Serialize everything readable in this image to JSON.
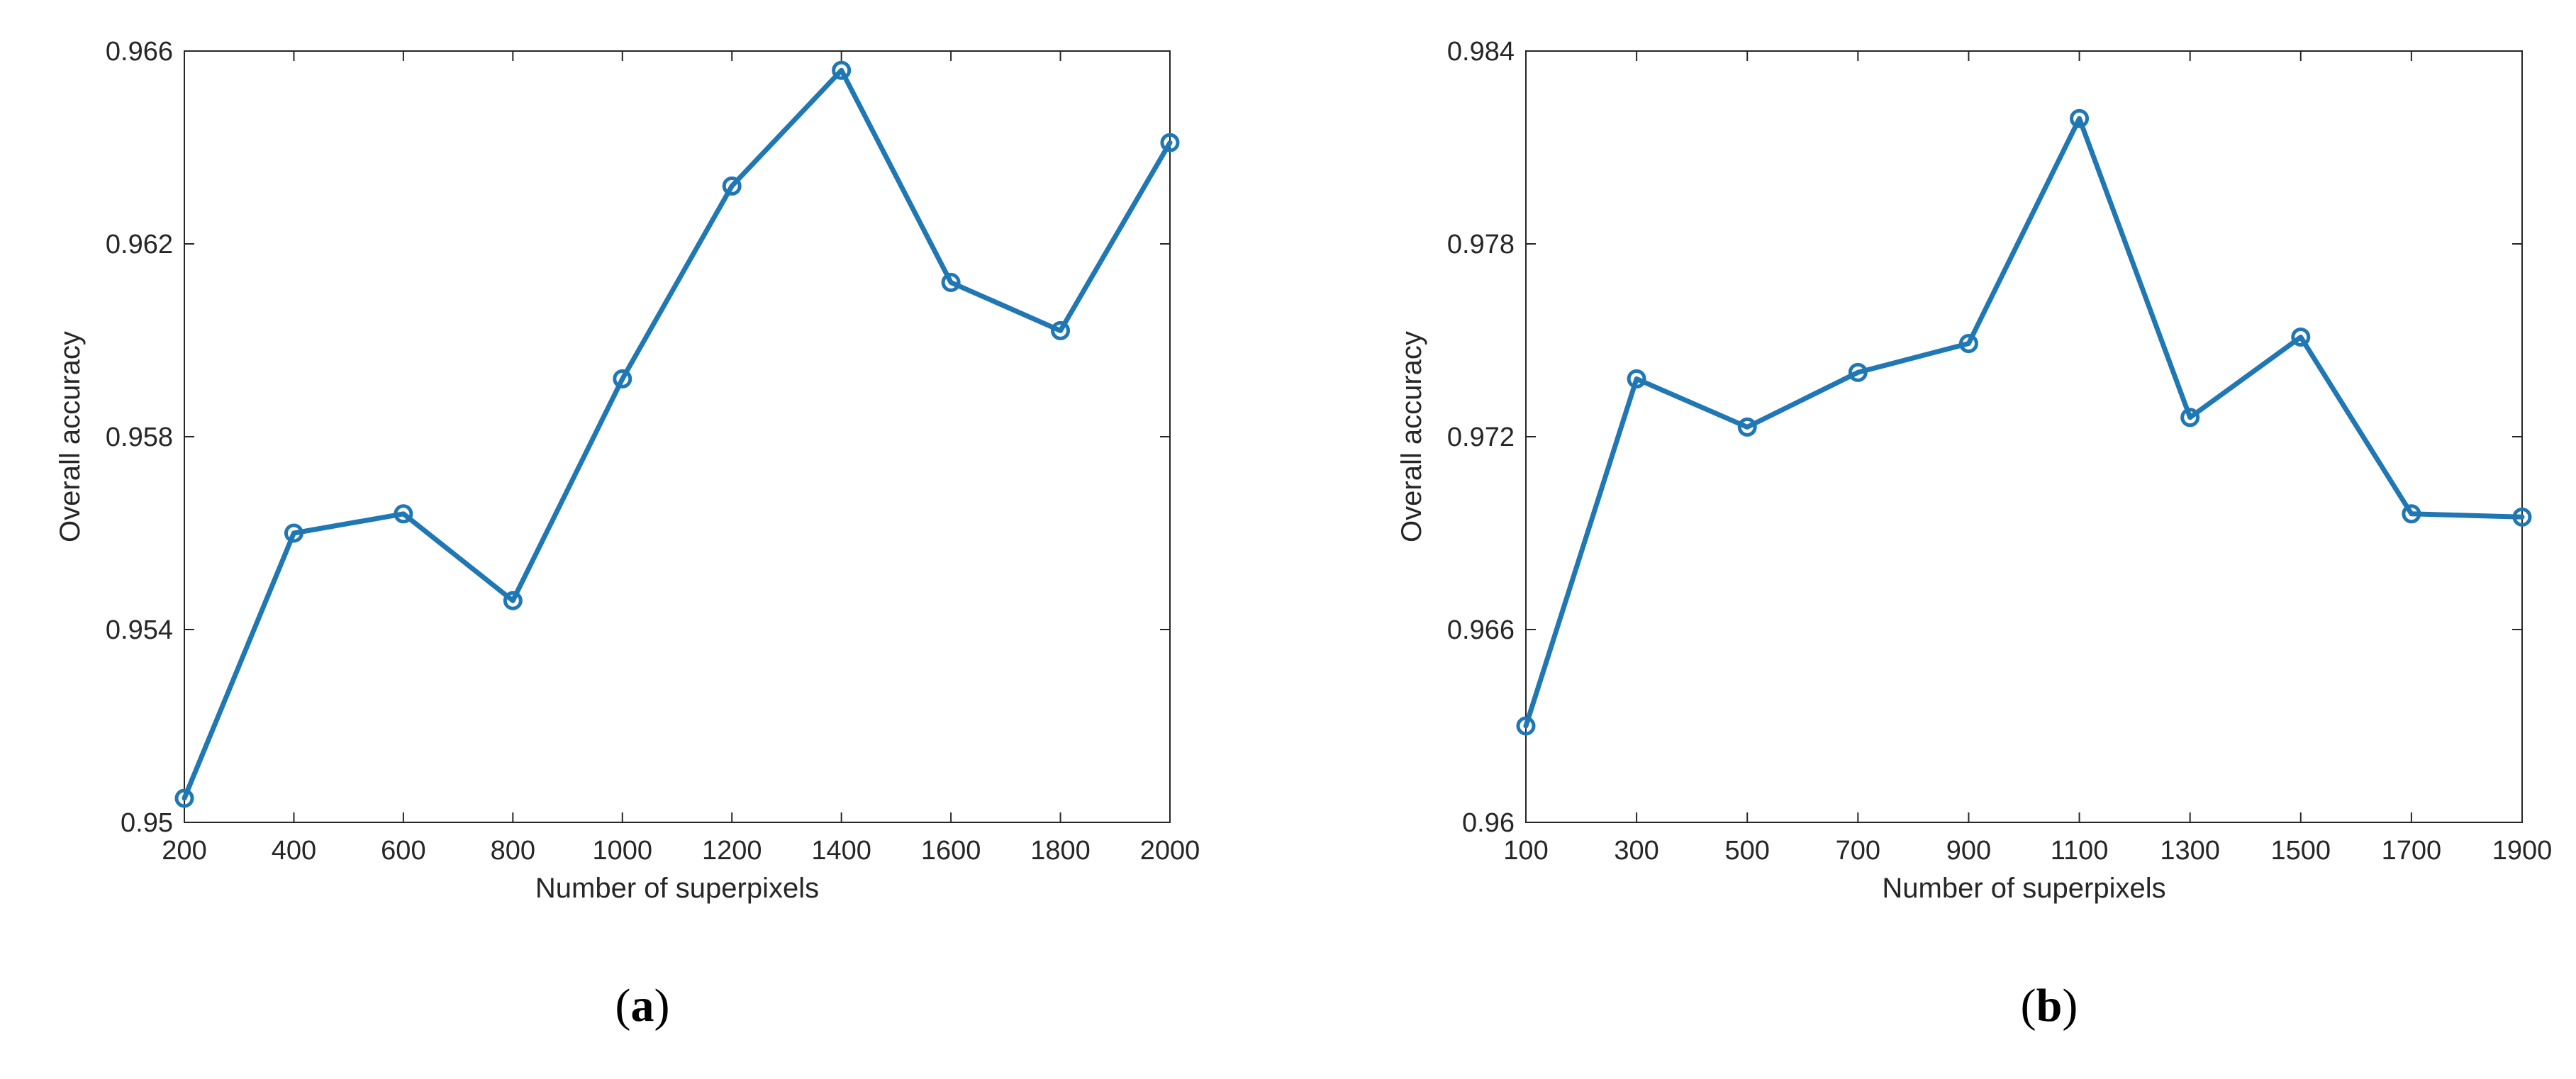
{
  "chart_data": [
    {
      "type": "line",
      "panel_label": "(a)",
      "panel_prefix": "(",
      "panel_letter": "a",
      "panel_suffix": ")",
      "title": "",
      "xlabel": "Number of superpixels",
      "ylabel": "Overall accuracy",
      "xlim": [
        200,
        2000
      ],
      "ylim": [
        0.95,
        0.966
      ],
      "xticks": [
        200,
        400,
        600,
        800,
        1000,
        1200,
        1400,
        1600,
        1800,
        2000
      ],
      "xtick_labels": [
        "200",
        "400",
        "600",
        "800",
        "1000",
        "1200",
        "1400",
        "1600",
        "1800",
        "2000"
      ],
      "yticks": [
        0.95,
        0.954,
        0.958,
        0.962,
        0.966
      ],
      "ytick_labels": [
        "0.95",
        "0.954",
        "0.958",
        "0.962",
        "0.966"
      ],
      "grid": false,
      "legend": "none",
      "color": "#1f77b4",
      "marker": "circle",
      "series": [
        {
          "x": [
            200,
            400,
            600,
            800,
            1000,
            1200,
            1400,
            1600,
            1800,
            2000
          ],
          "y": [
            0.9505,
            0.956,
            0.9564,
            0.9546,
            0.9592,
            0.9632,
            0.9656,
            0.9612,
            0.9602,
            0.9641
          ]
        }
      ]
    },
    {
      "type": "line",
      "panel_label": "(b)",
      "panel_prefix": "(",
      "panel_letter": "b",
      "panel_suffix": ")",
      "title": "",
      "xlabel": "Number of superpixels",
      "ylabel": "Overall accuracy",
      "xlim": [
        100,
        1900
      ],
      "ylim": [
        0.96,
        0.984
      ],
      "xticks": [
        100,
        300,
        500,
        700,
        900,
        1100,
        1300,
        1500,
        1700,
        1900
      ],
      "xtick_labels": [
        "100",
        "300",
        "500",
        "700",
        "900",
        "1100",
        "1300",
        "1500",
        "1700",
        "1900"
      ],
      "yticks": [
        0.96,
        0.966,
        0.972,
        0.978,
        0.984
      ],
      "ytick_labels": [
        "0.96",
        "0.966",
        "0.972",
        "0.978",
        "0.984"
      ],
      "grid": false,
      "legend": "none",
      "color": "#1f77b4",
      "marker": "circle",
      "series": [
        {
          "x": [
            100,
            300,
            500,
            700,
            900,
            1100,
            1300,
            1500,
            1700,
            1900
          ],
          "y": [
            0.963,
            0.9738,
            0.9723,
            0.974,
            0.9749,
            0.9819,
            0.9726,
            0.9751,
            0.9696,
            0.9695
          ]
        }
      ]
    }
  ]
}
